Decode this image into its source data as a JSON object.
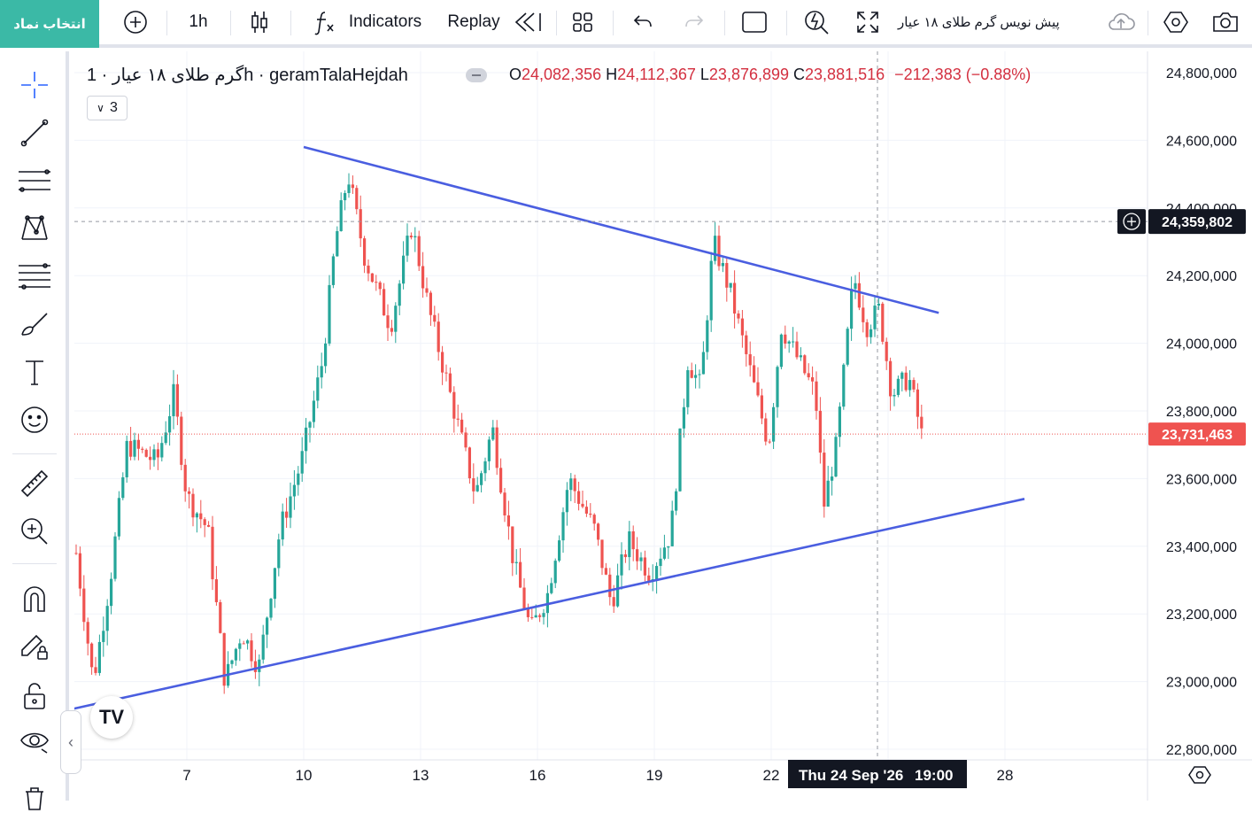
{
  "toolbar": {
    "symbol_button": "انتخاب نماد",
    "interval": "1h",
    "indicators": "Indicators",
    "replay": "Replay",
    "symbol_title": "پیش نویس گرم طلای ۱۸ عیار"
  },
  "legend": {
    "title": "گرم طلای ۱۸ عیار · 1h · geramTalaHejdah",
    "open_label": "O",
    "open": "24,082,356",
    "high_label": "H",
    "high": "24,112,367",
    "low_label": "L",
    "low": "23,876,899",
    "close_label": "C",
    "close": "23,881,516",
    "change": "−212,383 (−0.88%)",
    "indicator_count": "3"
  },
  "colors": {
    "up": "#26a69a",
    "down": "#ef5350",
    "trendline": "#4a5ee0",
    "accent": "#3bb9a6"
  },
  "chart_data": {
    "type": "candlestick",
    "title": "",
    "xlabel": "",
    "ylabel": "",
    "ylim": [
      22780000,
      24860000
    ],
    "y_ticks": [
      "22,800,000",
      "23,000,000",
      "23,200,000",
      "23,400,000",
      "23,600,000",
      "23,800,000",
      "24,000,000",
      "24,200,000",
      "24,400,000",
      "24,600,000",
      "24,800,000"
    ],
    "x_ticks": [
      "7",
      "10",
      "13",
      "16",
      "19",
      "22",
      "25",
      "28"
    ],
    "crosshair": {
      "date_label": "Thu 24 Sep '26",
      "time_label": "19:00",
      "price_label": "24,359,802",
      "price": 24359802
    },
    "last_price": {
      "label": "23,731,463",
      "value": 23731463
    },
    "trendlines": [
      {
        "name": "resistance",
        "from": [
          "10",
          24580000
        ],
        "to": [
          "26.3",
          24090000
        ]
      },
      {
        "name": "support",
        "from": [
          "4.1",
          22920000
        ],
        "to": [
          "28.5",
          23540000
        ]
      }
    ],
    "candle_anchors": [
      {
        "t": 0.0,
        "p": 23380000
      },
      {
        "t": 0.4,
        "p": 23000000
      },
      {
        "t": 0.8,
        "p": 23300000
      },
      {
        "t": 1.2,
        "p": 23700000
      },
      {
        "t": 1.9,
        "p": 23650000
      },
      {
        "t": 2.3,
        "p": 23850000
      },
      {
        "t": 2.6,
        "p": 23550000
      },
      {
        "t": 3.1,
        "p": 23450000
      },
      {
        "t": 3.5,
        "p": 23000000
      },
      {
        "t": 3.9,
        "p": 23150000
      },
      {
        "t": 4.3,
        "p": 23040000
      },
      {
        "t": 4.8,
        "p": 23450000
      },
      {
        "t": 5.3,
        "p": 23650000
      },
      {
        "t": 5.8,
        "p": 23950000
      },
      {
        "t": 6.1,
        "p": 24300000
      },
      {
        "t": 6.4,
        "p": 24500000
      },
      {
        "t": 6.8,
        "p": 24250000
      },
      {
        "t": 7.4,
        "p": 24050000
      },
      {
        "t": 7.9,
        "p": 24350000
      },
      {
        "t": 8.3,
        "p": 24100000
      },
      {
        "t": 8.9,
        "p": 23800000
      },
      {
        "t": 9.4,
        "p": 23550000
      },
      {
        "t": 9.8,
        "p": 23750000
      },
      {
        "t": 10.3,
        "p": 23350000
      },
      {
        "t": 10.7,
        "p": 23150000
      },
      {
        "t": 11.1,
        "p": 23260000
      },
      {
        "t": 11.6,
        "p": 23600000
      },
      {
        "t": 12.2,
        "p": 23450000
      },
      {
        "t": 12.6,
        "p": 23230000
      },
      {
        "t": 13.0,
        "p": 23420000
      },
      {
        "t": 13.5,
        "p": 23320000
      },
      {
        "t": 14.0,
        "p": 23440000
      },
      {
        "t": 14.4,
        "p": 23950000
      },
      {
        "t": 14.7,
        "p": 23870000
      },
      {
        "t": 15.0,
        "p": 24300000
      },
      {
        "t": 15.4,
        "p": 24150000
      },
      {
        "t": 15.9,
        "p": 23900000
      },
      {
        "t": 16.3,
        "p": 23700000
      },
      {
        "t": 16.6,
        "p": 24050000
      },
      {
        "t": 17.0,
        "p": 23950000
      },
      {
        "t": 17.4,
        "p": 23850000
      },
      {
        "t": 17.6,
        "p": 23520000
      },
      {
        "t": 17.9,
        "p": 23700000
      },
      {
        "t": 18.3,
        "p": 24200000
      },
      {
        "t": 18.6,
        "p": 24050000
      },
      {
        "t": 18.9,
        "p": 24100000
      },
      {
        "t": 19.2,
        "p": 23850000
      },
      {
        "t": 19.6,
        "p": 23900000
      },
      {
        "t": 19.9,
        "p": 23730000
      }
    ]
  }
}
